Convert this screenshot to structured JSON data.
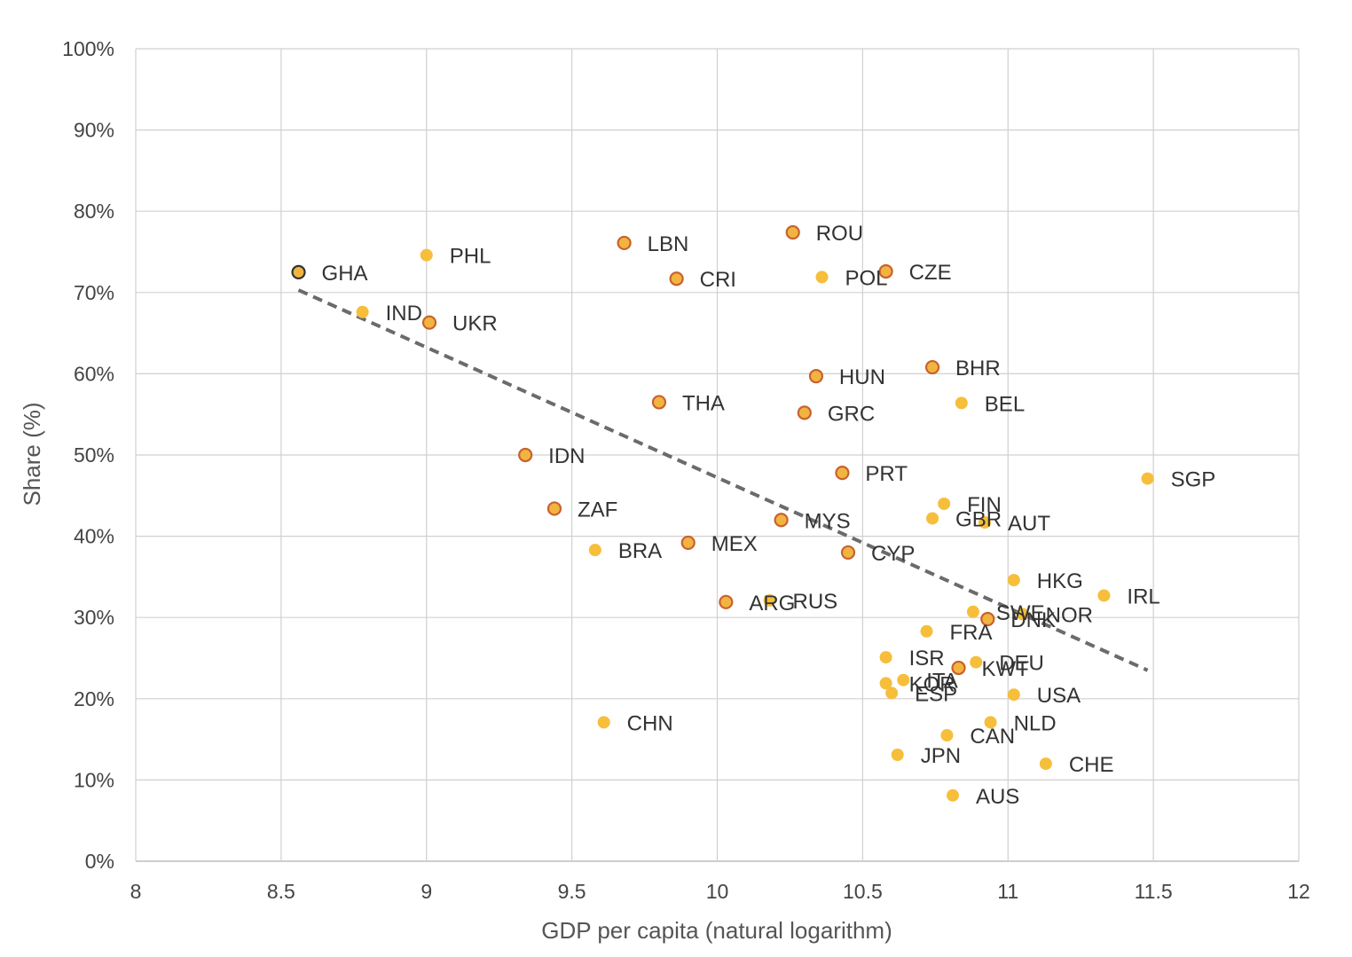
{
  "chart_data": {
    "type": "scatter",
    "title": "",
    "xlabel": "GDP per capita (natural logarithm)",
    "ylabel": "Share (%)",
    "xlim": [
      8,
      12
    ],
    "ylim": [
      0,
      100
    ],
    "x_ticks": [
      8,
      8.5,
      9,
      9.5,
      10,
      10.5,
      11,
      11.5,
      12
    ],
    "x_tick_labels": [
      "8",
      "8.5",
      "9",
      "9.5",
      "10",
      "10.5",
      "11",
      "11.5",
      "12"
    ],
    "y_ticks": [
      0,
      10,
      20,
      30,
      40,
      50,
      60,
      70,
      80,
      90,
      100
    ],
    "y_tick_labels": [
      "0%",
      "10%",
      "20%",
      "30%",
      "40%",
      "50%",
      "60%",
      "70%",
      "80%",
      "90%",
      "100%"
    ],
    "grid": true,
    "colors": {
      "plain": "#F6BE3A",
      "highlight_fill": "#F2B441",
      "highlight_stroke": "#C8622E",
      "ghana_stroke": "#333333",
      "trendline": "#6b6b6b"
    },
    "trendline": {
      "style": "dashed",
      "x": [
        8.56,
        11.48
      ],
      "y": [
        70.3,
        23.5
      ]
    },
    "points": [
      {
        "label": "GHA",
        "x": 8.56,
        "y": 72.5,
        "style": "ghana"
      },
      {
        "label": "PHL",
        "x": 9.0,
        "y": 74.6,
        "style": "plain"
      },
      {
        "label": "IND",
        "x": 8.78,
        "y": 67.6,
        "style": "plain"
      },
      {
        "label": "UKR",
        "x": 9.01,
        "y": 66.3,
        "style": "highlight"
      },
      {
        "label": "LBN",
        "x": 9.68,
        "y": 76.1,
        "style": "highlight"
      },
      {
        "label": "CRI",
        "x": 9.86,
        "y": 71.7,
        "style": "highlight"
      },
      {
        "label": "ROU",
        "x": 10.26,
        "y": 77.4,
        "style": "highlight"
      },
      {
        "label": "POL",
        "x": 10.36,
        "y": 71.9,
        "style": "plain"
      },
      {
        "label": "CZE",
        "x": 10.58,
        "y": 72.6,
        "style": "highlight"
      },
      {
        "label": "THA",
        "x": 9.8,
        "y": 56.5,
        "style": "highlight"
      },
      {
        "label": "HUN",
        "x": 10.34,
        "y": 59.7,
        "style": "highlight"
      },
      {
        "label": "GRC",
        "x": 10.3,
        "y": 55.2,
        "style": "highlight"
      },
      {
        "label": "BHR",
        "x": 10.74,
        "y": 60.8,
        "style": "highlight"
      },
      {
        "label": "BEL",
        "x": 10.84,
        "y": 56.4,
        "style": "plain"
      },
      {
        "label": "IDN",
        "x": 9.34,
        "y": 50.0,
        "style": "highlight"
      },
      {
        "label": "PRT",
        "x": 10.43,
        "y": 47.8,
        "style": "highlight"
      },
      {
        "label": "SGP",
        "x": 11.48,
        "y": 47.1,
        "style": "plain"
      },
      {
        "label": "ZAF",
        "x": 9.44,
        "y": 43.4,
        "style": "highlight"
      },
      {
        "label": "MYS",
        "x": 10.22,
        "y": 42.0,
        "style": "highlight"
      },
      {
        "label": "FIN",
        "x": 10.78,
        "y": 44.0,
        "style": "plain"
      },
      {
        "label": "GBR",
        "x": 10.74,
        "y": 42.2,
        "style": "plain"
      },
      {
        "label": "AUT",
        "x": 10.92,
        "y": 41.7,
        "style": "plain"
      },
      {
        "label": "BRA",
        "x": 9.58,
        "y": 38.3,
        "style": "plain"
      },
      {
        "label": "MEX",
        "x": 9.9,
        "y": 39.2,
        "style": "highlight"
      },
      {
        "label": "CYP",
        "x": 10.45,
        "y": 38.0,
        "style": "highlight"
      },
      {
        "label": "HKG",
        "x": 11.02,
        "y": 34.6,
        "style": "plain"
      },
      {
        "label": "IRL",
        "x": 11.33,
        "y": 32.7,
        "style": "plain"
      },
      {
        "label": "ARG",
        "x": 10.03,
        "y": 31.9,
        "style": "highlight"
      },
      {
        "label": "RUS",
        "x": 10.18,
        "y": 32.1,
        "style": "plain"
      },
      {
        "label": "SWE",
        "x": 10.88,
        "y": 30.7,
        "style": "plain"
      },
      {
        "label": "NOR",
        "x": 11.05,
        "y": 30.4,
        "style": "plain"
      },
      {
        "label": "DNK",
        "x": 10.93,
        "y": 29.8,
        "style": "highlight"
      },
      {
        "label": "FRA",
        "x": 10.72,
        "y": 28.3,
        "style": "plain"
      },
      {
        "label": "ISR",
        "x": 10.58,
        "y": 25.1,
        "style": "plain"
      },
      {
        "label": "DEU",
        "x": 10.89,
        "y": 24.5,
        "style": "plain"
      },
      {
        "label": "KWT",
        "x": 10.83,
        "y": 23.8,
        "style": "highlight"
      },
      {
        "label": "ITA",
        "x": 10.64,
        "y": 22.3,
        "style": "plain"
      },
      {
        "label": "KOR",
        "x": 10.58,
        "y": 21.9,
        "style": "plain"
      },
      {
        "label": "ESP",
        "x": 10.6,
        "y": 20.7,
        "style": "plain"
      },
      {
        "label": "USA",
        "x": 11.02,
        "y": 20.5,
        "style": "plain"
      },
      {
        "label": "CHN",
        "x": 9.61,
        "y": 17.1,
        "style": "plain"
      },
      {
        "label": "NLD",
        "x": 10.94,
        "y": 17.1,
        "style": "plain"
      },
      {
        "label": "CAN",
        "x": 10.79,
        "y": 15.5,
        "style": "plain"
      },
      {
        "label": "JPN",
        "x": 10.62,
        "y": 13.1,
        "style": "plain"
      },
      {
        "label": "CHE",
        "x": 11.13,
        "y": 12.0,
        "style": "plain"
      },
      {
        "label": "AUS",
        "x": 10.81,
        "y": 8.1,
        "style": "plain"
      }
    ]
  }
}
